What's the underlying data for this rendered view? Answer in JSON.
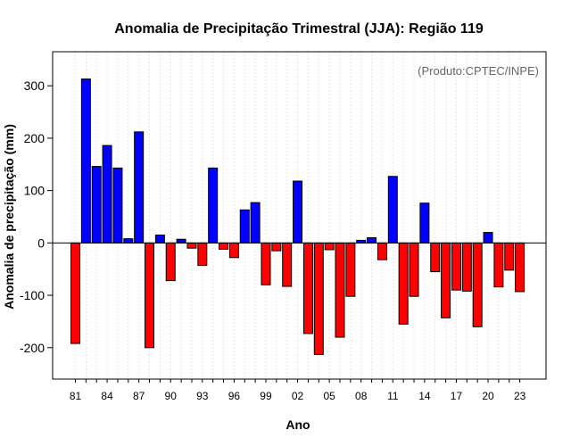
{
  "chart_data": {
    "type": "bar",
    "title": "Anomalia de Precipitação Trimestral (JJA): Região 119",
    "xlabel": "Ano",
    "ylabel": "Anomalia de precipitação (mm)",
    "source_note": "(Produto:CPTEC/INPE)",
    "ylim": [
      -260,
      365
    ],
    "y_ticks": [
      -200,
      -100,
      0,
      100,
      200,
      300
    ],
    "y_tick_labels": [
      "-200",
      "-100",
      "0",
      "100",
      "200",
      "300"
    ],
    "x_tick_labels": [
      "81",
      "84",
      "87",
      "90",
      "93",
      "96",
      "99",
      "02",
      "05",
      "08",
      "11",
      "14",
      "17",
      "20",
      "23"
    ],
    "x_tick_every": 3,
    "grid": "vertical-dotted",
    "legend": "none",
    "categories": [
      "1981",
      "1982",
      "1983",
      "1984",
      "1985",
      "1986",
      "1987",
      "1988",
      "1989",
      "1990",
      "1991",
      "1992",
      "1993",
      "1994",
      "1995",
      "1996",
      "1997",
      "1998",
      "1999",
      "2000",
      "2001",
      "2002",
      "2003",
      "2004",
      "2005",
      "2006",
      "2007",
      "2008",
      "2009",
      "2010",
      "2011",
      "2012",
      "2013",
      "2014",
      "2015",
      "2016",
      "2017",
      "2018",
      "2019",
      "2020",
      "2021",
      "2022",
      "2023"
    ],
    "values": [
      -192,
      313,
      146,
      186,
      143,
      8,
      212,
      -200,
      15,
      -72,
      7,
      -10,
      -43,
      143,
      -12,
      -28,
      63,
      77,
      -80,
      -15,
      -83,
      118,
      -173,
      -213,
      -13,
      -180,
      -102,
      5,
      10,
      -32,
      127,
      -155,
      -102,
      76,
      -55,
      -143,
      -90,
      -92,
      -160,
      20,
      -84,
      -52,
      -93
    ],
    "colors": {
      "positive": "#0000ff",
      "negative": "#ff0000",
      "bar_stroke": "#000000",
      "grid": "#d3d3d3",
      "zero_line": "#000000"
    }
  }
}
